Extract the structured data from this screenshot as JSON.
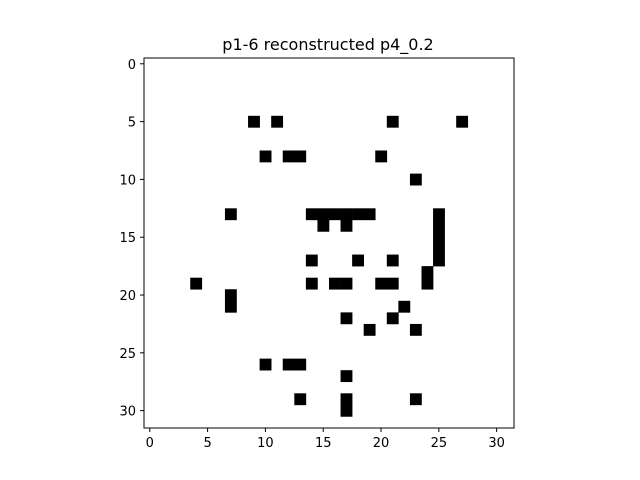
{
  "chart_data": {
    "type": "heatmap",
    "title": "p1-6 reconstructed p4_0.2",
    "xlabel": "",
    "ylabel": "",
    "grid_size": [
      32,
      32
    ],
    "xlim": [
      -0.5,
      31.5
    ],
    "ylim": [
      31.5,
      -0.5
    ],
    "x_ticks": [
      0,
      5,
      10,
      15,
      20,
      25,
      30
    ],
    "y_ticks": [
      0,
      5,
      10,
      15,
      20,
      25,
      30
    ],
    "x_tick_labels": [
      "0",
      "5",
      "10",
      "15",
      "20",
      "25",
      "30"
    ],
    "y_tick_labels": [
      "0",
      "5",
      "10",
      "15",
      "20",
      "25",
      "30"
    ],
    "cmap": "binary",
    "on_color": "#000000",
    "off_color": "#ffffff",
    "grid": false,
    "filled_cells": [
      [
        9,
        5
      ],
      [
        11,
        5
      ],
      [
        21,
        5
      ],
      [
        27,
        5
      ],
      [
        10,
        8
      ],
      [
        12,
        8
      ],
      [
        13,
        8
      ],
      [
        20,
        8
      ],
      [
        23,
        10
      ],
      [
        7,
        13
      ],
      [
        14,
        13
      ],
      [
        15,
        13
      ],
      [
        16,
        13
      ],
      [
        17,
        13
      ],
      [
        18,
        13
      ],
      [
        19,
        13
      ],
      [
        25,
        13
      ],
      [
        15,
        14
      ],
      [
        17,
        14
      ],
      [
        25,
        14
      ],
      [
        25,
        15
      ],
      [
        25,
        16
      ],
      [
        14,
        17
      ],
      [
        18,
        17
      ],
      [
        21,
        17
      ],
      [
        25,
        17
      ],
      [
        24,
        18
      ],
      [
        4,
        19
      ],
      [
        14,
        19
      ],
      [
        16,
        19
      ],
      [
        17,
        19
      ],
      [
        20,
        19
      ],
      [
        21,
        19
      ],
      [
        24,
        19
      ],
      [
        7,
        20
      ],
      [
        7,
        21
      ],
      [
        22,
        21
      ],
      [
        17,
        22
      ],
      [
        21,
        22
      ],
      [
        19,
        23
      ],
      [
        23,
        23
      ],
      [
        10,
        26
      ],
      [
        12,
        26
      ],
      [
        13,
        26
      ],
      [
        17,
        27
      ],
      [
        13,
        29
      ],
      [
        17,
        29
      ],
      [
        23,
        29
      ],
      [
        17,
        30
      ]
    ]
  }
}
